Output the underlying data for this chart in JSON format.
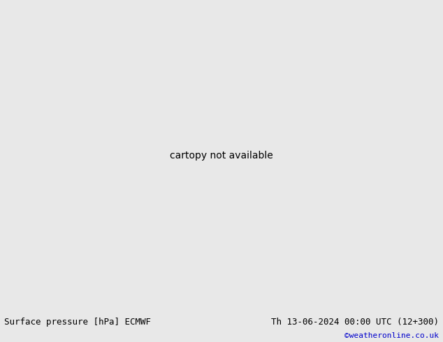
{
  "title_left": "Surface pressure [hPa] ECMWF",
  "title_right": "Th 13-06-2024 00:00 UTC (12+300)",
  "copyright": "©weatheronline.co.uk",
  "land_color": "#add69a",
  "ocean_color": "#d8d8d8",
  "highland_color": "#b0b0b0",
  "border_color": "#808080",
  "footer_bg": "#e8e8e8",
  "footer_text_color": "#000000",
  "copyright_color": "#0000cc",
  "fig_width": 6.34,
  "fig_height": 4.9,
  "dpi": 100,
  "extent": [
    -28,
    45,
    27,
    72
  ],
  "red_contour_color": "#cc0000",
  "blue_contour_color": "#0000cc",
  "black_contour_color": "#000000"
}
